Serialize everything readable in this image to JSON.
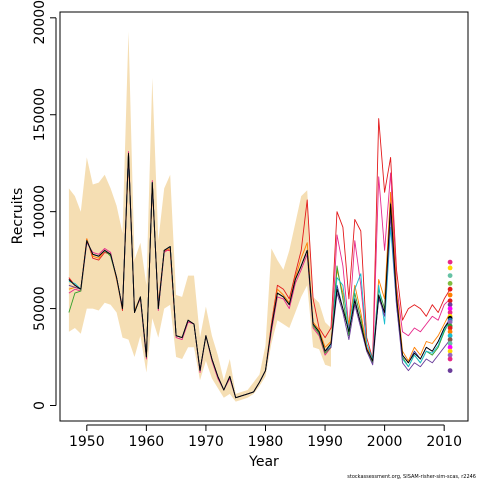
{
  "chart_data": {
    "type": "line",
    "xlabel": "Year",
    "ylabel": "Recruits",
    "credit": "stockassessment.org, SISAM-risher-sim-scas, r2246",
    "xlim": [
      1945.5,
      2014
    ],
    "ylim": [
      -8000,
      203000
    ],
    "x_ticks": [
      1950,
      1960,
      1970,
      1980,
      1990,
      2000,
      2010
    ],
    "y_ticks": [
      0,
      50000,
      100000,
      150000,
      200000
    ],
    "x_tick_labels": [
      "1950",
      "1960",
      "1970",
      "1980",
      "1990",
      "2000",
      "2010"
    ],
    "y_tick_labels": [
      "0",
      "50000",
      "100000",
      "150000",
      "200000"
    ],
    "grid": false,
    "band_color": "#f5deb3",
    "band_lower": [
      [
        1947,
        38000
      ],
      [
        1948,
        40000
      ],
      [
        1949,
        37000
      ],
      [
        1950,
        50000
      ],
      [
        1951,
        50000
      ],
      [
        1952,
        49000
      ],
      [
        1953,
        53000
      ],
      [
        1954,
        52000
      ],
      [
        1955,
        48000
      ],
      [
        1956,
        35000
      ],
      [
        1957,
        34000
      ],
      [
        1958,
        25000
      ],
      [
        1959,
        36000
      ],
      [
        1960,
        17000
      ],
      [
        1961,
        45000
      ],
      [
        1962,
        35000
      ],
      [
        1963,
        50000
      ],
      [
        1964,
        52000
      ],
      [
        1965,
        25000
      ],
      [
        1966,
        24000
      ],
      [
        1967,
        30000
      ],
      [
        1968,
        30000
      ],
      [
        1969,
        13000
      ],
      [
        1970,
        23000
      ],
      [
        1971,
        14000
      ],
      [
        1972,
        9000
      ],
      [
        1973,
        4000
      ],
      [
        1974,
        6000
      ],
      [
        1975,
        2000
      ],
      [
        1976,
        3000
      ],
      [
        1977,
        4000
      ],
      [
        1978,
        6000
      ],
      [
        1979,
        10000
      ],
      [
        1980,
        15000
      ],
      [
        1981,
        32000
      ],
      [
        1982,
        44000
      ],
      [
        1983,
        42000
      ],
      [
        1984,
        40000
      ],
      [
        1985,
        48000
      ],
      [
        1986,
        56000
      ],
      [
        1987,
        62000
      ],
      [
        1988,
        30000
      ],
      [
        1989,
        29000
      ],
      [
        1990,
        21000
      ],
      [
        1991,
        20000
      ]
    ],
    "band_upper": [
      [
        1947,
        112000
      ],
      [
        1948,
        108000
      ],
      [
        1949,
        100000
      ],
      [
        1950,
        128000
      ],
      [
        1951,
        114000
      ],
      [
        1952,
        115000
      ],
      [
        1953,
        119000
      ],
      [
        1954,
        112000
      ],
      [
        1955,
        103000
      ],
      [
        1956,
        89000
      ],
      [
        1957,
        193000
      ],
      [
        1958,
        75000
      ],
      [
        1959,
        84000
      ],
      [
        1960,
        62000
      ],
      [
        1961,
        169000
      ],
      [
        1962,
        85000
      ],
      [
        1963,
        112000
      ],
      [
        1964,
        119000
      ],
      [
        1965,
        57000
      ],
      [
        1966,
        56000
      ],
      [
        1967,
        67000
      ],
      [
        1968,
        67000
      ],
      [
        1969,
        35000
      ],
      [
        1970,
        51000
      ],
      [
        1971,
        36000
      ],
      [
        1972,
        26000
      ],
      [
        1973,
        13000
      ],
      [
        1974,
        24000
      ],
      [
        1975,
        6000
      ],
      [
        1976,
        7000
      ],
      [
        1977,
        8000
      ],
      [
        1978,
        12000
      ],
      [
        1979,
        16000
      ],
      [
        1980,
        31000
      ],
      [
        1981,
        81000
      ],
      [
        1982,
        75000
      ],
      [
        1983,
        70000
      ],
      [
        1984,
        80000
      ],
      [
        1985,
        94000
      ],
      [
        1986,
        108000
      ],
      [
        1987,
        111000
      ],
      [
        1988,
        56000
      ],
      [
        1989,
        53000
      ],
      [
        1990,
        43000
      ],
      [
        1991,
        40000
      ]
    ],
    "x": [
      1947,
      1948,
      1949,
      1950,
      1951,
      1952,
      1953,
      1954,
      1955,
      1956,
      1957,
      1958,
      1959,
      1960,
      1961,
      1962,
      1963,
      1964,
      1965,
      1966,
      1967,
      1968,
      1969,
      1970,
      1971,
      1972,
      1973,
      1974,
      1975,
      1976,
      1977,
      1978,
      1979,
      1980,
      1981,
      1982,
      1983,
      1984,
      1985,
      1986,
      1987,
      1988,
      1989,
      1990,
      1991,
      1992,
      1993,
      1994,
      1995,
      1996,
      1997,
      1998,
      1999,
      2000,
      2001,
      2002,
      2003,
      2004,
      2005,
      2006,
      2007,
      2008,
      2009,
      2010,
      2011
    ],
    "series": [
      {
        "color": "#2f2f8f",
        "values": [
          65000,
          62000,
          60000,
          85000,
          78000,
          77000,
          80000,
          78000,
          66000,
          50000,
          130000,
          48000,
          56000,
          25000,
          115000,
          50000,
          80000,
          82000,
          36000,
          35000,
          44000,
          42000,
          18000,
          36000,
          24000,
          15000,
          8000,
          15000,
          4000,
          5000,
          6000,
          7000,
          12000,
          18000,
          40000,
          58000,
          56000,
          52000,
          65000,
          72000,
          80000,
          42000,
          38000,
          28000,
          32000,
          62000,
          50000,
          38000,
          55000,
          42000,
          30000,
          24000,
          55000,
          48000,
          105000,
          55000,
          26000,
          22000,
          28000,
          24000,
          30000,
          28000,
          33000,
          40000,
          45000
        ]
      },
      {
        "color": "#e31a1c",
        "values": [
          66000,
          62000,
          60000,
          86000,
          76000,
          75000,
          79000,
          78000,
          66000,
          49000,
          128000,
          48000,
          56000,
          26000,
          113000,
          52000,
          80000,
          80000,
          36000,
          35000,
          44000,
          42000,
          18000,
          36000,
          24000,
          15000,
          8000,
          15000,
          4000,
          5000,
          6000,
          7000,
          12000,
          18000,
          42000,
          62000,
          60000,
          55000,
          68000,
          80000,
          106000,
          55000,
          40000,
          35000,
          40000,
          100000,
          92000,
          55000,
          96000,
          90000,
          35000,
          24000,
          148000,
          110000,
          128000,
          70000,
          44000,
          50000,
          52000,
          50000,
          46000,
          52000,
          48000,
          55000,
          60000
        ]
      },
      {
        "color": "#e7298a",
        "values": [
          58000,
          60000,
          59000,
          84000,
          79000,
          78000,
          81000,
          79000,
          65000,
          51000,
          131000,
          49000,
          55000,
          24000,
          116000,
          49000,
          79000,
          81000,
          35000,
          34000,
          43000,
          42000,
          17000,
          36000,
          23000,
          14000,
          8000,
          14000,
          4000,
          5000,
          6000,
          7000,
          12000,
          18000,
          38000,
          56000,
          55000,
          50000,
          63000,
          70000,
          78000,
          40000,
          36000,
          26000,
          30000,
          88000,
          72000,
          40000,
          85000,
          62000,
          30000,
          22000,
          118000,
          80000,
          120000,
          62000,
          38000,
          36000,
          40000,
          38000,
          42000,
          46000,
          44000,
          52000,
          55000
        ]
      },
      {
        "color": "#ff7f00",
        "values": [
          60000,
          61000,
          60000,
          86000,
          77000,
          76000,
          80000,
          78000,
          65000,
          50000,
          129000,
          49000,
          56000,
          25000,
          114000,
          51000,
          80000,
          81000,
          36000,
          35000,
          44000,
          42000,
          18000,
          36000,
          24000,
          15000,
          8000,
          15000,
          4000,
          5000,
          6000,
          7000,
          12000,
          18000,
          40000,
          60000,
          57000,
          53000,
          66000,
          76000,
          84000,
          43000,
          39000,
          30000,
          33000,
          70000,
          58000,
          42000,
          62000,
          48000,
          30000,
          23000,
          65000,
          55000,
          110000,
          60000,
          28000,
          23000,
          30000,
          26000,
          33000,
          32000,
          36000,
          42000,
          48000
        ]
      },
      {
        "color": "#33a02c",
        "values": [
          48000,
          58000,
          59000,
          85000,
          78000,
          77000,
          80000,
          77000,
          66000,
          50000,
          130000,
          48000,
          56000,
          25000,
          115000,
          50000,
          80000,
          82000,
          36000,
          35000,
          44000,
          42000,
          18000,
          36000,
          24000,
          15000,
          8000,
          15000,
          4000,
          5000,
          6000,
          7000,
          12000,
          18000,
          40000,
          58000,
          56000,
          52000,
          65000,
          72000,
          80000,
          41000,
          37000,
          27000,
          30000,
          72000,
          55000,
          36000,
          58000,
          45000,
          28000,
          22000,
          60000,
          50000,
          100000,
          55000,
          25000,
          20000,
          26000,
          22000,
          28000,
          26000,
          30000,
          38000,
          44000
        ]
      },
      {
        "color": "#17becf",
        "values": [
          64000,
          63000,
          60000,
          85000,
          78000,
          77000,
          80000,
          78000,
          66000,
          50000,
          130000,
          48000,
          56000,
          25000,
          115000,
          50000,
          80000,
          82000,
          36000,
          35000,
          44000,
          42000,
          18000,
          36000,
          24000,
          15000,
          8000,
          15000,
          4000,
          5000,
          6000,
          7000,
          12000,
          18000,
          40000,
          58000,
          56000,
          52000,
          65000,
          72000,
          80000,
          42000,
          38000,
          28000,
          31000,
          66000,
          62000,
          38000,
          60000,
          68000,
          32000,
          24000,
          62000,
          42000,
          92000,
          52000,
          24000,
          20000,
          26000,
          22000,
          28000,
          27000,
          31000,
          39000,
          43000
        ]
      },
      {
        "color": "#6a3d9a",
        "values": [
          62000,
          61000,
          60000,
          85000,
          78000,
          77000,
          80000,
          78000,
          66000,
          50000,
          130000,
          48000,
          56000,
          25000,
          115000,
          50000,
          80000,
          82000,
          36000,
          35000,
          44000,
          42000,
          18000,
          36000,
          24000,
          15000,
          8000,
          15000,
          4000,
          5000,
          6000,
          7000,
          12000,
          18000,
          40000,
          58000,
          56000,
          52000,
          65000,
          72000,
          80000,
          42000,
          38000,
          28000,
          30000,
          58000,
          48000,
          34000,
          52000,
          40000,
          28000,
          21000,
          56000,
          46000,
          98000,
          52000,
          22000,
          18000,
          22000,
          20000,
          24000,
          22000,
          26000,
          30000,
          34000
        ]
      },
      {
        "color": "#000000",
        "values": [
          65000,
          62000,
          60000,
          85000,
          78000,
          77000,
          80000,
          78000,
          66000,
          50000,
          130000,
          48000,
          56000,
          25000,
          115000,
          50000,
          80000,
          82000,
          36000,
          35000,
          44000,
          42000,
          18000,
          36000,
          24000,
          15000,
          8000,
          15000,
          4000,
          5000,
          6000,
          7000,
          12000,
          18000,
          40000,
          58000,
          56000,
          52000,
          65000,
          72000,
          80000,
          42000,
          38000,
          28000,
          32000,
          60000,
          50000,
          38000,
          54000,
          42000,
          29000,
          23000,
          57000,
          48000,
          104000,
          56000,
          26000,
          22000,
          27000,
          24000,
          30000,
          28000,
          33000,
          40000,
          44000
        ]
      }
    ],
    "end_point_values": [
      74000,
      71000,
      67000,
      63000,
      60000,
      57000,
      54000,
      52000,
      50000,
      48000,
      46000,
      45000,
      44000,
      43000,
      41000,
      40000,
      38000,
      36000,
      34000,
      32000,
      30000,
      28000,
      26000,
      24000,
      18000
    ],
    "end_point_colors": [
      "#e7298a",
      "#ffd700",
      "#66c2a5",
      "#7fbc41",
      "#e31a1c",
      "#ff7f00",
      "#e31a1c",
      "#6a3d9a",
      "#ff00ff",
      "#e7298a",
      "#ffd700",
      "#000000",
      "#1f78b4",
      "#9467bd",
      "#33a02c",
      "#e31a1c",
      "#ff7f00",
      "#17becf",
      "#8c564b",
      "#66c2a5",
      "#ff00ff",
      "#ffd700",
      "#9467bd",
      "#e7298a",
      "#6a3d9a"
    ]
  }
}
